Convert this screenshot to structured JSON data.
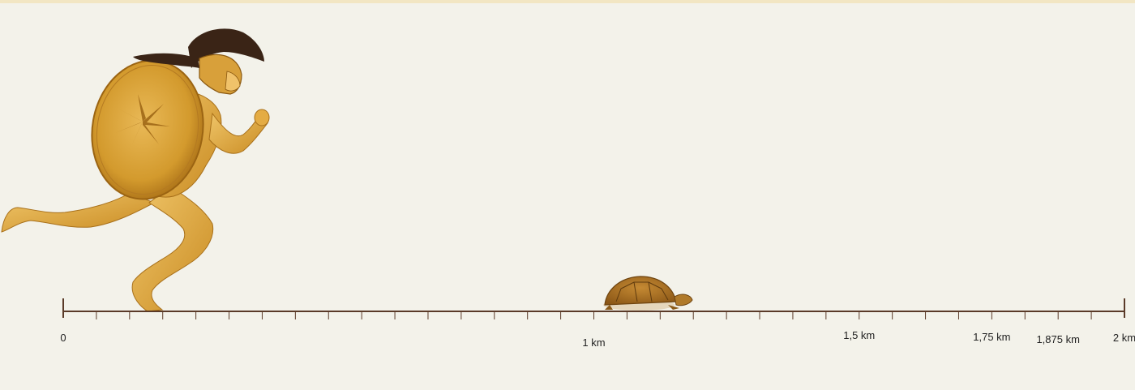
{
  "scale": {
    "unit": "km",
    "min": 0,
    "max": 2,
    "minor_tick_step": 0.0625,
    "labels": [
      {
        "value": 0,
        "text": "0"
      },
      {
        "value": 1,
        "text": "1 km"
      },
      {
        "value": 1.5,
        "text": "1,5 km"
      },
      {
        "value": 1.75,
        "text": "1,75 km"
      },
      {
        "value": 1.875,
        "text": "1,875 km"
      },
      {
        "value": 2,
        "text": "2 km"
      }
    ]
  },
  "figures": {
    "runner": {
      "name": "achilles-figure",
      "position_km": 0.15
    },
    "tortoise": {
      "name": "tortoise-figure",
      "position_km": 1.08
    }
  },
  "colors": {
    "axis": "#5a3a28",
    "bronze": "#d49a2a",
    "bronze_dark": "#9c6414",
    "crest": "#3a2416",
    "shell": "#a86c1c"
  }
}
